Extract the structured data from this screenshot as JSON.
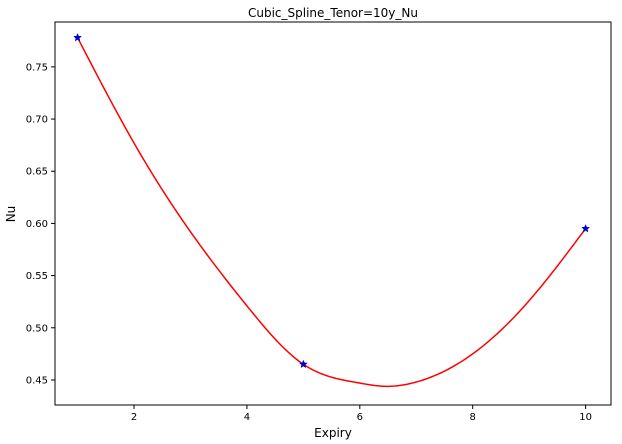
{
  "chart_data": {
    "type": "line",
    "title": "Cubic_Spline_Tenor=10y_Nu",
    "xlabel": "Expiry",
    "ylabel": "Nu",
    "xlim": [
      0.6,
      10.45
    ],
    "ylim": [
      0.426,
      0.793
    ],
    "x_ticks": [
      2,
      4,
      6,
      8,
      10
    ],
    "y_ticks": [
      0.45,
      0.5,
      0.55,
      0.6,
      0.65,
      0.7,
      0.75
    ],
    "x_tick_labels": [
      "2",
      "4",
      "6",
      "8",
      "10"
    ],
    "y_tick_labels": [
      "0.45",
      "0.50",
      "0.55",
      "0.60",
      "0.65",
      "0.70",
      "0.75"
    ],
    "grid": false,
    "series": [
      {
        "kind": "points",
        "marker": "star",
        "color": "#0000cc",
        "x": [
          1,
          5,
          10
        ],
        "y": [
          0.778,
          0.465,
          0.595
        ]
      },
      {
        "kind": "curve",
        "color": "#ff0000",
        "x": [
          1,
          2,
          3,
          4,
          5,
          6,
          6.4,
          7,
          8,
          9,
          10
        ],
        "y": [
          0.778,
          0.677,
          0.592,
          0.521,
          0.465,
          0.447,
          0.444,
          0.448,
          0.475,
          0.526,
          0.595
        ]
      }
    ]
  }
}
